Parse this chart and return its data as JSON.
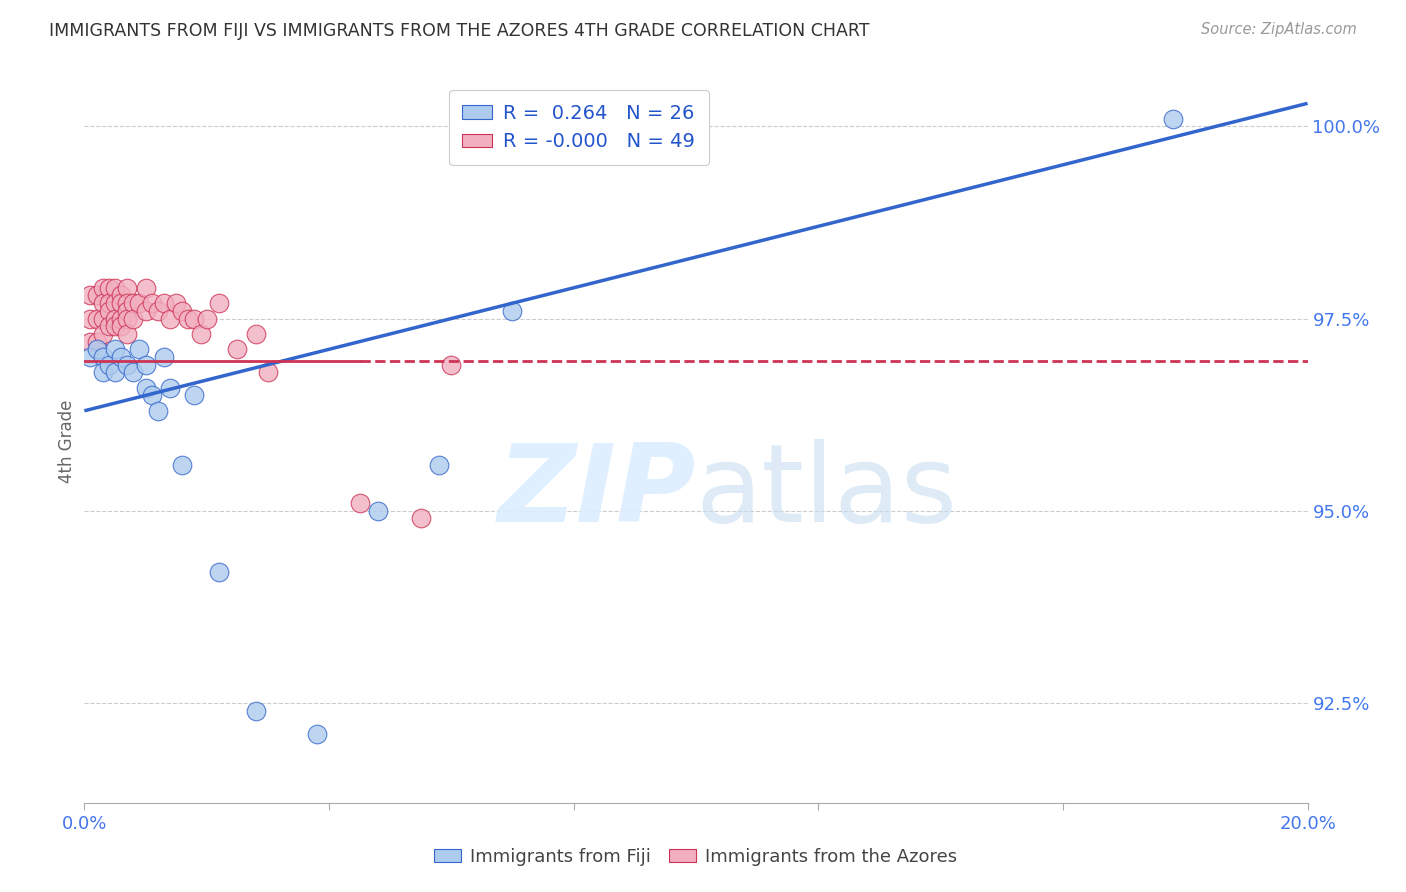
{
  "title": "IMMIGRANTS FROM FIJI VS IMMIGRANTS FROM THE AZORES 4TH GRADE CORRELATION CHART",
  "source": "Source: ZipAtlas.com",
  "ylabel": "4th Grade",
  "xlim": [
    0.0,
    0.2
  ],
  "ylim": [
    0.912,
    1.006
  ],
  "yticks": [
    0.925,
    0.95,
    0.975,
    1.0
  ],
  "ytick_labels": [
    "92.5%",
    "95.0%",
    "97.5%",
    "100.0%"
  ],
  "xticks": [
    0.0,
    0.04,
    0.08,
    0.12,
    0.16,
    0.2
  ],
  "xtick_labels": [
    "0.0%",
    "",
    "",
    "",
    "",
    "20.0%"
  ],
  "fiji_R": 0.264,
  "fiji_N": 26,
  "azores_R": -0.0,
  "azores_N": 49,
  "fiji_color": "#aecbee",
  "azores_color": "#f2afc0",
  "fiji_line_color": "#3366cc",
  "azores_line_color": "#cc3355",
  "fiji_points_x": [
    0.001,
    0.002,
    0.003,
    0.003,
    0.004,
    0.005,
    0.005,
    0.006,
    0.007,
    0.008,
    0.009,
    0.01,
    0.01,
    0.011,
    0.012,
    0.013,
    0.014,
    0.016,
    0.018,
    0.022,
    0.028,
    0.038,
    0.048,
    0.058,
    0.07,
    0.178
  ],
  "fiji_points_y": [
    0.97,
    0.971,
    0.97,
    0.968,
    0.969,
    0.971,
    0.968,
    0.97,
    0.969,
    0.968,
    0.971,
    0.969,
    0.966,
    0.965,
    0.963,
    0.97,
    0.966,
    0.956,
    0.965,
    0.942,
    0.924,
    0.921,
    0.95,
    0.956,
    0.976,
    1.001
  ],
  "azores_points_x": [
    0.001,
    0.001,
    0.001,
    0.002,
    0.002,
    0.002,
    0.003,
    0.003,
    0.003,
    0.003,
    0.004,
    0.004,
    0.004,
    0.004,
    0.005,
    0.005,
    0.005,
    0.005,
    0.006,
    0.006,
    0.006,
    0.006,
    0.007,
    0.007,
    0.007,
    0.007,
    0.007,
    0.008,
    0.008,
    0.009,
    0.01,
    0.01,
    0.011,
    0.012,
    0.013,
    0.014,
    0.015,
    0.016,
    0.017,
    0.018,
    0.019,
    0.02,
    0.022,
    0.025,
    0.028,
    0.03,
    0.045,
    0.055,
    0.06
  ],
  "azores_points_y": [
    0.978,
    0.975,
    0.972,
    0.978,
    0.975,
    0.972,
    0.979,
    0.977,
    0.975,
    0.973,
    0.979,
    0.977,
    0.976,
    0.974,
    0.979,
    0.977,
    0.975,
    0.974,
    0.978,
    0.977,
    0.975,
    0.974,
    0.979,
    0.977,
    0.976,
    0.975,
    0.973,
    0.977,
    0.975,
    0.977,
    0.979,
    0.976,
    0.977,
    0.976,
    0.977,
    0.975,
    0.977,
    0.976,
    0.975,
    0.975,
    0.973,
    0.975,
    0.977,
    0.971,
    0.973,
    0.968,
    0.951,
    0.949,
    0.969
  ],
  "fiji_line_x0": 0.0,
  "fiji_line_y0": 0.963,
  "fiji_line_x1": 0.2,
  "fiji_line_y1": 1.003,
  "azores_line_x0": 0.0,
  "azores_line_y0": 0.9695,
  "azores_line_x1": 0.2,
  "azores_line_y1": 0.9695
}
